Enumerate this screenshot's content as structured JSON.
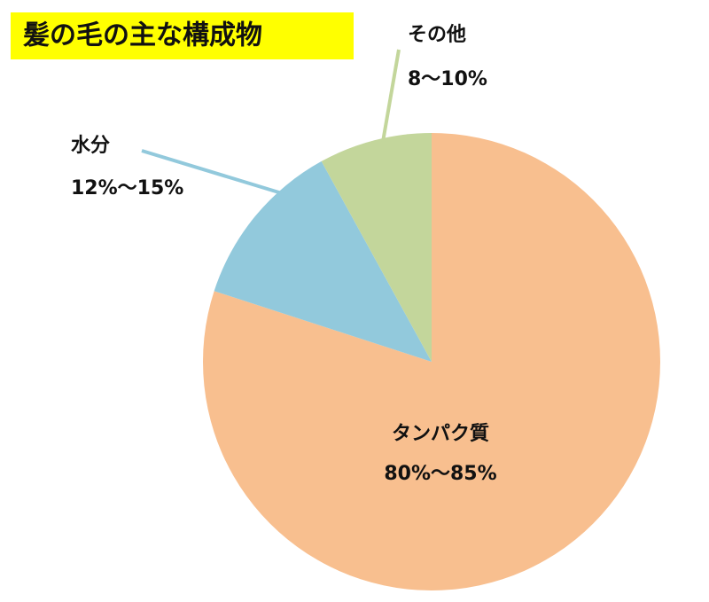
{
  "chart_data": {
    "type": "pie",
    "title": "髪の毛の主な構成物",
    "categories": [
      "タンパク質",
      "水分",
      "その他"
    ],
    "values": [
      80,
      12,
      8
    ],
    "value_labels": [
      "80%〜85%",
      "12%〜15%",
      "8〜10%"
    ],
    "colors": [
      "#f8bf8f",
      "#92c9dc",
      "#c3d69b"
    ]
  }
}
